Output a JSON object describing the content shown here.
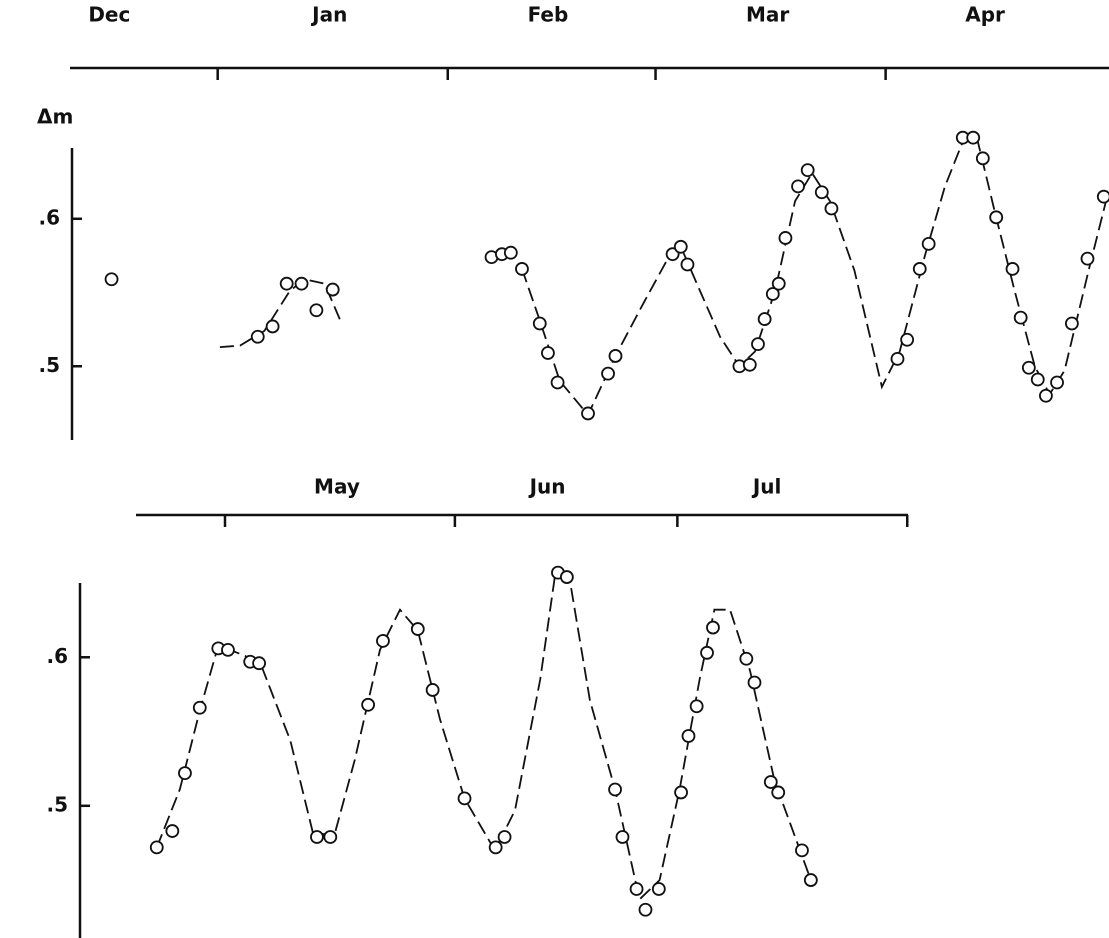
{
  "chart_data": [
    {
      "type": "scatter",
      "y_label": "Δm",
      "xlim": [
        11.1,
        151.1
      ],
      "ylim": [
        0.45,
        0.648
      ],
      "xticks": [
        31,
        62,
        90,
        121
      ],
      "month_labels": [
        {
          "value": 16.4,
          "label": "Dec"
        },
        {
          "value": 46.1,
          "label": "Jan"
        },
        {
          "value": 75.5,
          "label": "Feb"
        },
        {
          "value": 105.1,
          "label": "Mar"
        },
        {
          "value": 134.4,
          "label": "Apr"
        }
      ],
      "yticks": [
        {
          "value": 0.6,
          "label": ".6"
        },
        {
          "value": 0.5,
          "label": ".5"
        }
      ],
      "color": "#111111",
      "series": [
        {
          "marker": "circle",
          "x": [
            16.7,
            36.4,
            38.4,
            40.3,
            42.3,
            44.3,
            46.5,
            67.9,
            69.3,
            70.5,
            72.0,
            74.4,
            75.5,
            76.8,
            80.9,
            83.6,
            84.6,
            92.3,
            93.4,
            94.3,
            101.3,
            102.7,
            103.8,
            104.7,
            105.8,
            106.6,
            107.5,
            109.2,
            110.5,
            112.4,
            113.7,
            122.6,
            123.9,
            125.6,
            126.8,
            131.4,
            132.8,
            134.1,
            135.9,
            138.1,
            139.2,
            140.3,
            141.5,
            142.6,
            144.1,
            146.1,
            148.2,
            150.4
          ],
          "values": [
            0.559,
            0.52,
            0.527,
            0.556,
            0.556,
            0.538,
            0.552,
            0.574,
            0.576,
            0.577,
            0.566,
            0.529,
            0.509,
            0.489,
            0.468,
            0.495,
            0.507,
            0.576,
            0.581,
            0.569,
            0.5,
            0.501,
            0.515,
            0.532,
            0.549,
            0.556,
            0.587,
            0.622,
            0.633,
            0.618,
            0.607,
            0.505,
            0.518,
            0.566,
            0.583,
            0.655,
            0.655,
            0.641,
            0.601,
            0.566,
            0.533,
            0.499,
            0.491,
            0.48,
            0.489,
            0.529,
            0.573,
            0.615
          ]
        },
        {
          "style": "dashed",
          "x": [
            31.3,
            34.0,
            37.3,
            40.7,
            42.7,
            45.4,
            47.7,
            null,
            72.0,
            74.4,
            77.1,
            80.9,
            84.6,
            88.5,
            92.2,
            93.5,
            96.0,
            98.7,
            101.3,
            103.4,
            106.1,
            108.8,
            111.1,
            113.5,
            116.8,
            120.5,
            122.9,
            126.3,
            129.0,
            131.7,
            133.4,
            135.7,
            138.4,
            141.1,
            143.1,
            145.1,
            148.5,
            150.9
          ],
          "values": [
            0.513,
            0.514,
            0.524,
            0.551,
            0.559,
            0.556,
            0.529,
            null,
            0.566,
            0.531,
            0.49,
            0.467,
            0.507,
            0.544,
            0.578,
            0.58,
            0.551,
            0.52,
            0.5,
            0.51,
            0.551,
            0.612,
            0.631,
            0.612,
            0.565,
            0.486,
            0.51,
            0.575,
            0.622,
            0.656,
            0.653,
            0.605,
            0.551,
            0.5,
            0.481,
            0.497,
            0.568,
            0.616
          ]
        }
      ]
    },
    {
      "type": "scatter",
      "xlim": [
        139,
        243.1
      ],
      "ylim": [
        0.411,
        0.65
      ],
      "xticks": [
        151,
        182,
        212,
        243
      ],
      "month_labels": [
        {
          "value": 166.1,
          "label": "May"
        },
        {
          "value": 194.5,
          "label": "Jun"
        },
        {
          "value": 224.1,
          "label": "Jul"
        }
      ],
      "yticks": [
        {
          "value": 0.6,
          "label": ".6"
        },
        {
          "value": 0.5,
          "label": ".5"
        }
      ],
      "color": "#111111",
      "series": [
        {
          "marker": "circle",
          "x": [
            141.8,
            143.9,
            145.6,
            147.6,
            150.1,
            151.4,
            154.4,
            155.6,
            163.4,
            165.2,
            170.3,
            172.3,
            177.0,
            179.0,
            183.3,
            187.5,
            188.7,
            195.9,
            197.1,
            203.6,
            204.6,
            206.5,
            207.7,
            209.5,
            212.5,
            213.5,
            214.6,
            216.0,
            216.8,
            221.3,
            222.4,
            224.6,
            225.6,
            228.8,
            230.0
          ],
          "values": [
            0.472,
            0.483,
            0.522,
            0.566,
            0.606,
            0.605,
            0.597,
            0.596,
            0.479,
            0.479,
            0.568,
            0.611,
            0.619,
            0.578,
            0.505,
            0.472,
            0.479,
            0.657,
            0.654,
            0.511,
            0.479,
            0.444,
            0.43,
            0.444,
            0.509,
            0.547,
            0.567,
            0.603,
            0.62,
            0.599,
            0.583,
            0.516,
            0.509,
            0.47,
            0.45
          ]
        },
        {
          "style": "dashed",
          "x": [
            141.8,
            144.9,
            147.6,
            150.1,
            153.7,
            156.0,
            159.8,
            162.9,
            165.8,
            168.5,
            171.9,
            174.6,
            177.0,
            180.0,
            183.3,
            187.4,
            190.1,
            193.5,
            195.5,
            197.5,
            200.2,
            203.6,
            206.9,
            209.6,
            212.3,
            215.0,
            217.0,
            219.1,
            221.8,
            225.1,
            230.0
          ],
          "values": [
            0.472,
            0.511,
            0.564,
            0.608,
            0.601,
            0.593,
            0.544,
            0.481,
            0.481,
            0.531,
            0.605,
            0.632,
            0.618,
            0.558,
            0.505,
            0.47,
            0.497,
            0.585,
            0.655,
            0.652,
            0.571,
            0.511,
            0.437,
            0.45,
            0.511,
            0.585,
            0.632,
            0.632,
            0.591,
            0.517,
            0.45
          ]
        }
      ]
    }
  ]
}
